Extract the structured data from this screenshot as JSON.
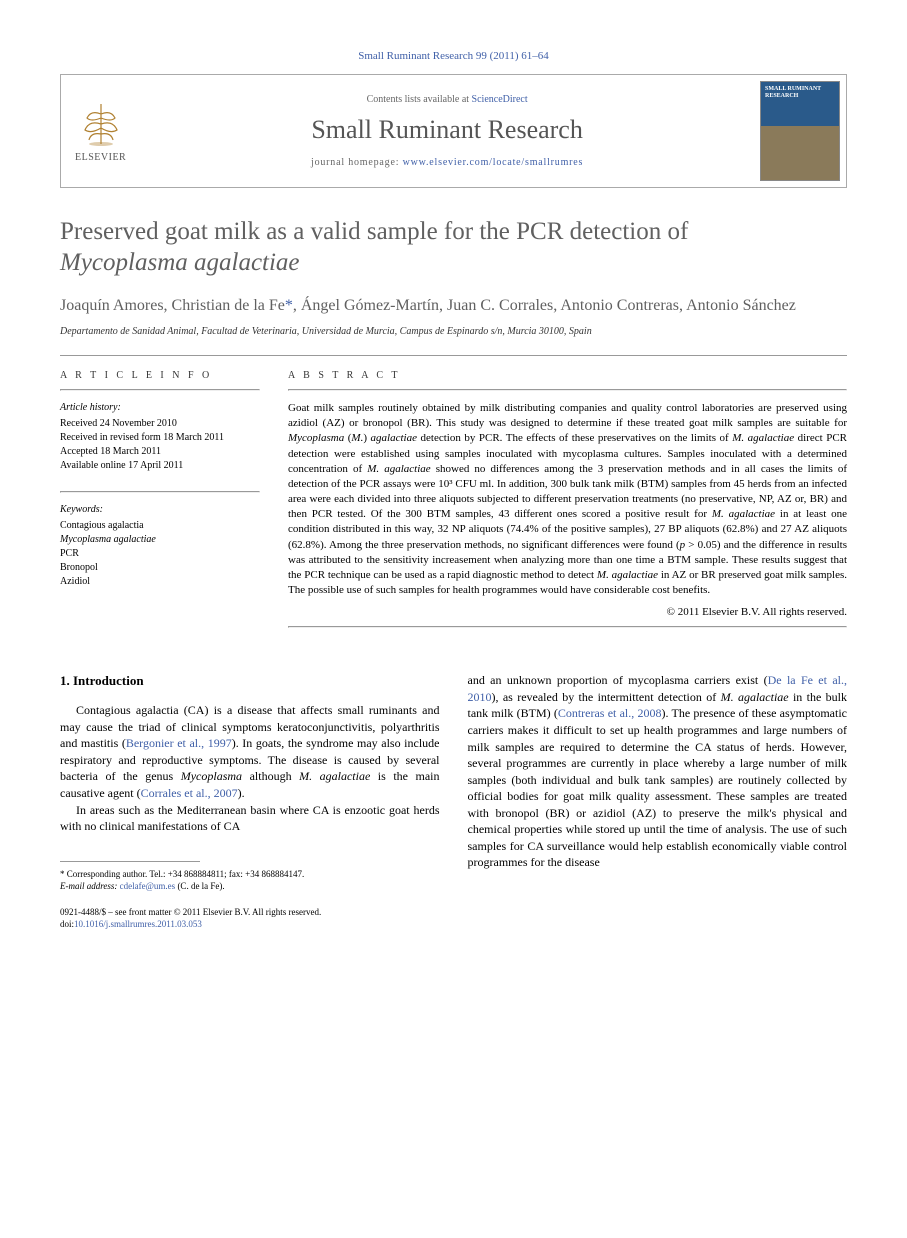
{
  "journal_ref": "Small Ruminant Research 99 (2011) 61–64",
  "header": {
    "contents_prefix": "Contents lists available at ",
    "contents_link": "ScienceDirect",
    "journal_name": "Small Ruminant Research",
    "homepage_prefix": "journal homepage: ",
    "homepage_url": "www.elsevier.com/locate/smallrumres",
    "publisher": "ELSEVIER",
    "cover_label": "SMALL RUMINANT RESEARCH"
  },
  "title_line1": "Preserved goat milk as a valid sample for the PCR detection of",
  "title_line2_italic": "Mycoplasma agalactiae",
  "authors": "Joaquín Amores, Christian de la Fe",
  "authors_rest": ", Ángel Gómez-Martín, Juan C. Corrales, Antonio Contreras, Antonio Sánchez",
  "corr_mark": "*",
  "affiliation": "Departamento de Sanidad Animal, Facultad de Veterinaria, Universidad de Murcia, Campus de Espinardo s/n, Murcia 30100, Spain",
  "article_info": {
    "label": "A R T I C L E   I N F O",
    "history_hd": "Article history:",
    "received": "Received 24 November 2010",
    "revised": "Received in revised form 18 March 2011",
    "accepted": "Accepted 18 March 2011",
    "online": "Available online 17 April 2011",
    "keywords_hd": "Keywords:",
    "kw1": "Contagious agalactia",
    "kw2_italic": "Mycoplasma agalactiae",
    "kw3": "PCR",
    "kw4": "Bronopol",
    "kw5": "Azidiol"
  },
  "abstract": {
    "label": "A B S T R A C T",
    "text_parts": [
      {
        "t": "Goat milk samples routinely obtained by milk distributing companies and quality control laboratories are preserved using azidiol (AZ) or bronopol (BR). This study was designed to determine if these treated goat milk samples are suitable for "
      },
      {
        "t": "Mycoplasma",
        "i": true
      },
      {
        "t": " ("
      },
      {
        "t": "M.",
        "i": true
      },
      {
        "t": ") "
      },
      {
        "t": "agalactiae",
        "i": true
      },
      {
        "t": " detection by PCR. The effects of these preservatives on the limits of "
      },
      {
        "t": "M. agalactiae",
        "i": true
      },
      {
        "t": " direct PCR detection were established using samples inoculated with mycoplasma cultures. Samples inoculated with a determined concentration of "
      },
      {
        "t": "M. agalactiae",
        "i": true
      },
      {
        "t": " showed no differences among the 3 preservation methods and in all cases the limits of detection of the PCR assays were 10³ CFU ml. In addition, 300 bulk tank milk (BTM) samples from 45 herds from an infected area were each divided into three aliquots subjected to different preservation treatments (no preservative, NP, AZ or, BR) and then PCR tested. Of the 300 BTM samples, 43 different ones scored a positive result for "
      },
      {
        "t": "M. agalactiae",
        "i": true
      },
      {
        "t": " in at least one condition distributed in this way, 32 NP aliquots (74.4% of the positive samples), 27 BP aliquots (62.8%) and 27 AZ aliquots (62.8%). Among the three preservation methods, no significant differences were found ("
      },
      {
        "t": "p",
        "i": true
      },
      {
        "t": " > 0.05) and the difference in results was attributed to the sensitivity increasement when analyzing more than one time a BTM sample. These results suggest that the PCR technique can be used as a rapid diagnostic method to detect "
      },
      {
        "t": "M. agalactiae",
        "i": true
      },
      {
        "t": " in AZ or BR preserved goat milk samples. The possible use of such samples for health programmes would have considerable cost benefits."
      }
    ],
    "copyright": "© 2011 Elsevier B.V. All rights reserved."
  },
  "body": {
    "section_heading": "1. Introduction",
    "col1_p1_parts": [
      {
        "t": "Contagious agalactia (CA) is a disease that affects small ruminants and may cause the triad of clinical symptoms keratoconjunctivitis, polyarthritis and mastitis ("
      },
      {
        "t": "Bergonier et al., 1997",
        "c": true
      },
      {
        "t": "). In goats, the syndrome may also include respiratory and reproductive symptoms. The disease is caused by several bacteria of the genus "
      },
      {
        "t": "Mycoplasma",
        "i": true
      },
      {
        "t": " although "
      },
      {
        "t": "M. agalactiae",
        "i": true
      },
      {
        "t": " is the main causative agent ("
      },
      {
        "t": "Corrales et al., 2007",
        "c": true
      },
      {
        "t": ")."
      }
    ],
    "col1_p2": "In areas such as the Mediterranean basin where CA is enzootic goat herds with no clinical manifestations of CA",
    "col2_p1_parts": [
      {
        "t": "and an unknown proportion of mycoplasma carriers exist ("
      },
      {
        "t": "De la Fe et al., 2010",
        "c": true
      },
      {
        "t": "), as revealed by the intermittent detection of "
      },
      {
        "t": "M. agalactiae",
        "i": true
      },
      {
        "t": " in the bulk tank milk (BTM) ("
      },
      {
        "t": "Contreras et al., 2008",
        "c": true
      },
      {
        "t": "). The presence of these asymptomatic carriers makes it difficult to set up health programmes and large numbers of milk samples are required to determine the CA status of herds. However, several programmes are currently in place whereby a large number of milk samples (both individual and bulk tank samples) are routinely collected by official bodies for goat milk quality assessment. These samples are treated with bronopol (BR) or azidiol (AZ) to preserve the milk's physical and chemical properties while stored up until the time of analysis. The use of such samples for CA surveillance would help establish economically viable control programmes for the disease"
      }
    ]
  },
  "footnote": {
    "corr_text": "Corresponding author. Tel.: +34 868884811; fax: +34 868884147.",
    "email_label": "E-mail address:",
    "email": "cdelafe@um.es",
    "email_suffix": " (C. de la Fe)."
  },
  "footer": {
    "line1": "0921-4488/$ – see front matter © 2011 Elsevier B.V. All rights reserved.",
    "doi_prefix": "doi:",
    "doi": "10.1016/j.smallrumres.2011.03.053"
  },
  "colors": {
    "link": "#4060a8",
    "heading_grey": "#606060",
    "text": "#000000",
    "rule": "#999999"
  }
}
